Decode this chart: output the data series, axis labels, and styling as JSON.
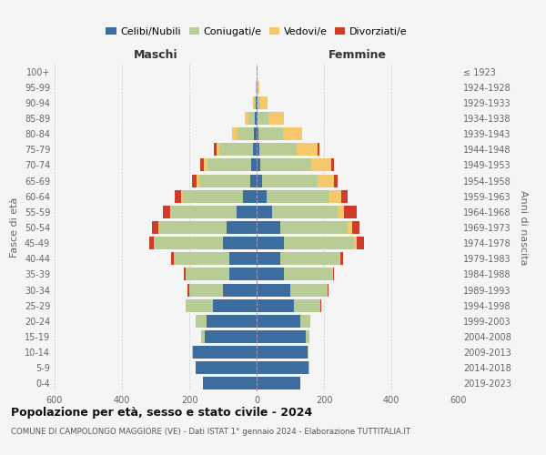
{
  "age_groups": [
    "0-4",
    "5-9",
    "10-14",
    "15-19",
    "20-24",
    "25-29",
    "30-34",
    "35-39",
    "40-44",
    "45-49",
    "50-54",
    "55-59",
    "60-64",
    "65-69",
    "70-74",
    "75-79",
    "80-84",
    "85-89",
    "90-94",
    "95-99",
    "100+"
  ],
  "birth_years": [
    "2019-2023",
    "2014-2018",
    "2009-2013",
    "2004-2008",
    "1999-2003",
    "1994-1998",
    "1989-1993",
    "1984-1988",
    "1979-1983",
    "1974-1978",
    "1969-1973",
    "1964-1968",
    "1959-1963",
    "1954-1958",
    "1949-1953",
    "1944-1948",
    "1939-1943",
    "1934-1938",
    "1929-1933",
    "1924-1928",
    "≤ 1923"
  ],
  "colors": {
    "celibi": "#3d6d9e",
    "coniugati": "#b8cc96",
    "vedovi": "#f5c96b",
    "divorziati": "#d13b2a"
  },
  "maschi": {
    "celibi": [
      160,
      180,
      190,
      155,
      150,
      130,
      100,
      80,
      80,
      100,
      90,
      60,
      40,
      20,
      15,
      10,
      8,
      5,
      2,
      1,
      1
    ],
    "coniugati": [
      0,
      1,
      2,
      10,
      30,
      80,
      100,
      130,
      165,
      205,
      200,
      195,
      180,
      150,
      130,
      100,
      50,
      20,
      5,
      1,
      0
    ],
    "vedovi": [
      0,
      0,
      0,
      0,
      0,
      0,
      0,
      0,
      0,
      1,
      2,
      3,
      5,
      8,
      12,
      8,
      15,
      10,
      5,
      1,
      0
    ],
    "divorziati": [
      0,
      0,
      0,
      0,
      0,
      2,
      5,
      6,
      8,
      12,
      18,
      20,
      18,
      15,
      10,
      8,
      0,
      0,
      0,
      0,
      0
    ]
  },
  "femmine": {
    "celibi": [
      130,
      155,
      150,
      145,
      130,
      110,
      100,
      80,
      70,
      80,
      70,
      45,
      30,
      15,
      12,
      8,
      6,
      4,
      2,
      1,
      1
    ],
    "coniugati": [
      0,
      2,
      3,
      12,
      30,
      80,
      110,
      145,
      175,
      210,
      200,
      195,
      185,
      165,
      150,
      112,
      72,
      30,
      8,
      2,
      0
    ],
    "vedovi": [
      0,
      0,
      0,
      0,
      0,
      0,
      1,
      2,
      3,
      8,
      15,
      20,
      35,
      50,
      60,
      62,
      58,
      48,
      22,
      5,
      1
    ],
    "divorziati": [
      0,
      0,
      0,
      0,
      0,
      2,
      3,
      4,
      8,
      20,
      20,
      38,
      20,
      10,
      8,
      5,
      0,
      0,
      0,
      0,
      0
    ]
  },
  "title": "Popolazione per età, sesso e stato civile - 2024",
  "subtitle": "COMUNE DI CAMPOLONGO MAGGIORE (VE) - Dati ISTAT 1° gennaio 2024 - Elaborazione TUTTITALIA.IT",
  "xlabel_left": "Maschi",
  "xlabel_right": "Femmine",
  "ylabel_left": "Fasce di età",
  "ylabel_right": "Anni di nascita",
  "xlim": 600,
  "legend_labels": [
    "Celibi/Nubili",
    "Coniugati/e",
    "Vedovi/e",
    "Divorziati/e"
  ],
  "bg_color": "#f5f5f5",
  "grid_color": "#cccccc"
}
